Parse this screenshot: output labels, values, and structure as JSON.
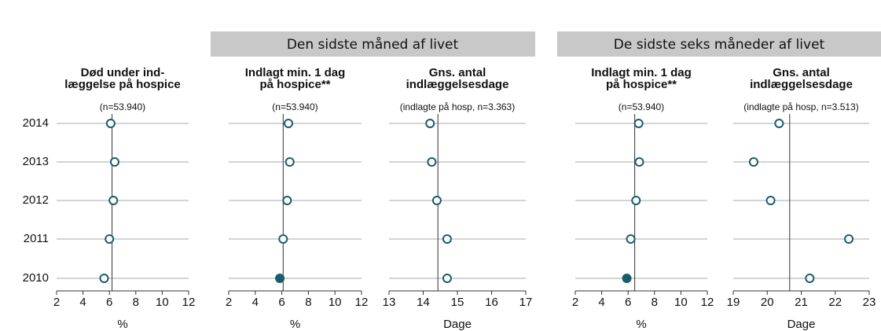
{
  "groups": [
    "Den sidste måned af livet",
    "De sidste seks måneder af livet"
  ],
  "chart_data": [
    {
      "type": "dot",
      "title": [
        "Død under ind-",
        "læggelse på hospice"
      ],
      "subtitle": "(n=53.940)",
      "categories": [
        "2014",
        "2013",
        "2012",
        "2011",
        "2010"
      ],
      "values": [
        6.1,
        6.4,
        6.3,
        6.0,
        5.6
      ],
      "filled": [
        false,
        false,
        false,
        false,
        false
      ],
      "reference": 6.2,
      "xlim": [
        2,
        12
      ],
      "xticks": [
        2,
        4,
        6,
        8,
        10,
        12
      ],
      "xlabel": "%",
      "color": "#1a5c6b"
    },
    {
      "type": "dot",
      "title": [
        "Indlagt min. 1 dag",
        "på hospice**"
      ],
      "subtitle": "(n=53.940)",
      "values": [
        6.5,
        6.6,
        6.4,
        6.1,
        5.85
      ],
      "filled": [
        false,
        false,
        false,
        false,
        true
      ],
      "reference": 6.1,
      "xlim": [
        2,
        12
      ],
      "xticks": [
        2,
        4,
        6,
        8,
        10,
        12
      ],
      "xlabel": "%",
      "color": "#1a5c6b"
    },
    {
      "type": "dot",
      "title": [
        "Gns. antal",
        "indlæggelsesdage"
      ],
      "subtitle": "(indlagte på hosp, n=3.363)",
      "values": [
        14.2,
        14.25,
        14.4,
        14.7,
        14.7
      ],
      "filled": [
        false,
        false,
        false,
        false,
        false
      ],
      "reference": 14.43,
      "xlim": [
        13,
        17
      ],
      "xticks": [
        13,
        14,
        15,
        16,
        17
      ],
      "xlabel": "Dage",
      "color": "#1a5c6b"
    },
    {
      "type": "dot",
      "title": [
        "Indlagt min. 1 dag",
        "på hospice**"
      ],
      "subtitle": "(n=53.940)",
      "values": [
        6.8,
        6.85,
        6.6,
        6.2,
        5.9
      ],
      "filled": [
        false,
        false,
        false,
        false,
        true
      ],
      "reference": 6.5,
      "xlim": [
        2,
        12
      ],
      "xticks": [
        2,
        4,
        6,
        8,
        10,
        12
      ],
      "xlabel": "%",
      "color": "#1a5c6b"
    },
    {
      "type": "dot",
      "title": [
        "Gns. antal",
        "indlæggelsesdage"
      ],
      "subtitle": "(indlagte på hosp, n=3.513)",
      "values": [
        20.35,
        19.6,
        20.1,
        22.4,
        21.25
      ],
      "filled": [
        false,
        false,
        false,
        false,
        false
      ],
      "reference": 20.66,
      "xlim": [
        19,
        23
      ],
      "xticks": [
        19,
        20,
        21,
        22,
        23
      ],
      "xlabel": "Dage",
      "color": "#1a5c6b"
    }
  ]
}
